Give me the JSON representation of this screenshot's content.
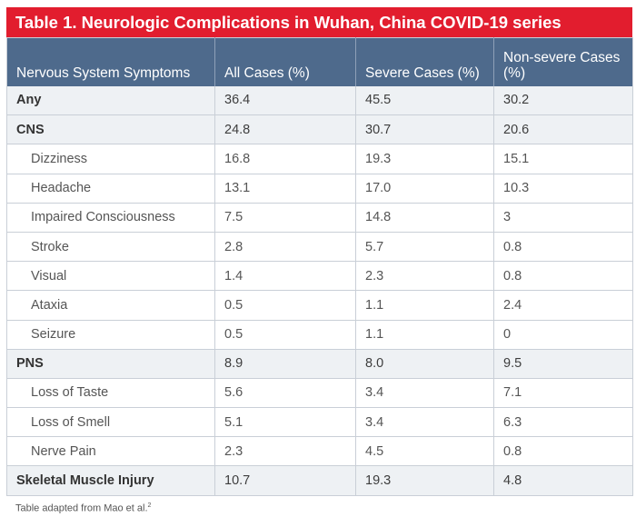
{
  "title": "Table 1.  Neurologic Complications in Wuhan, China COVID-19 series",
  "headers": {
    "col1": "Nervous System Symptoms",
    "col2": "All Cases (%)",
    "col3": "Severe Cases (%)",
    "col4": "Non-severe Cases (%)"
  },
  "rows": [
    {
      "label": "Any",
      "all": "36.4",
      "severe": "45.5",
      "nonsevere": "30.2",
      "group": true
    },
    {
      "label": "CNS",
      "all": "24.8",
      "severe": "30.7",
      "nonsevere": "20.6",
      "group": true
    },
    {
      "label": "Dizziness",
      "all": "16.8",
      "severe": "19.3",
      "nonsevere": "15.1",
      "group": false
    },
    {
      "label": "Headache",
      "all": "13.1",
      "severe": "17.0",
      "nonsevere": "10.3",
      "group": false
    },
    {
      "label": "Impaired Consciousness",
      "all": "7.5",
      "severe": "14.8",
      "nonsevere": "3",
      "group": false
    },
    {
      "label": "Stroke",
      "all": "2.8",
      "severe": "5.7",
      "nonsevere": "0.8",
      "group": false
    },
    {
      "label": "Visual",
      "all": "1.4",
      "severe": "2.3",
      "nonsevere": "0.8",
      "group": false
    },
    {
      "label": "Ataxia",
      "all": "0.5",
      "severe": "1.1",
      "nonsevere": "2.4",
      "group": false
    },
    {
      "label": "Seizure",
      "all": "0.5",
      "severe": "1.1",
      "nonsevere": "0",
      "group": false
    },
    {
      "label": "PNS",
      "all": "8.9",
      "severe": "8.0",
      "nonsevere": "9.5",
      "group": true
    },
    {
      "label": "Loss of Taste",
      "all": "5.6",
      "severe": "3.4",
      "nonsevere": "7.1",
      "group": false
    },
    {
      "label": "Loss of Smell",
      "all": "5.1",
      "severe": "3.4",
      "nonsevere": "6.3",
      "group": false
    },
    {
      "label": "Nerve Pain",
      "all": "2.3",
      "severe": "4.5",
      "nonsevere": "0.8",
      "group": false
    },
    {
      "label": "Skeletal Muscle Injury",
      "all": "10.7",
      "severe": "19.3",
      "nonsevere": "4.8",
      "group": true
    }
  ],
  "footnote": {
    "text": "Table adapted from Mao et al.",
    "ref": "2"
  },
  "colors": {
    "title_bg": "#e21d2e",
    "header_bg": "#4e6a8c",
    "group_row_bg": "#eef1f4"
  }
}
